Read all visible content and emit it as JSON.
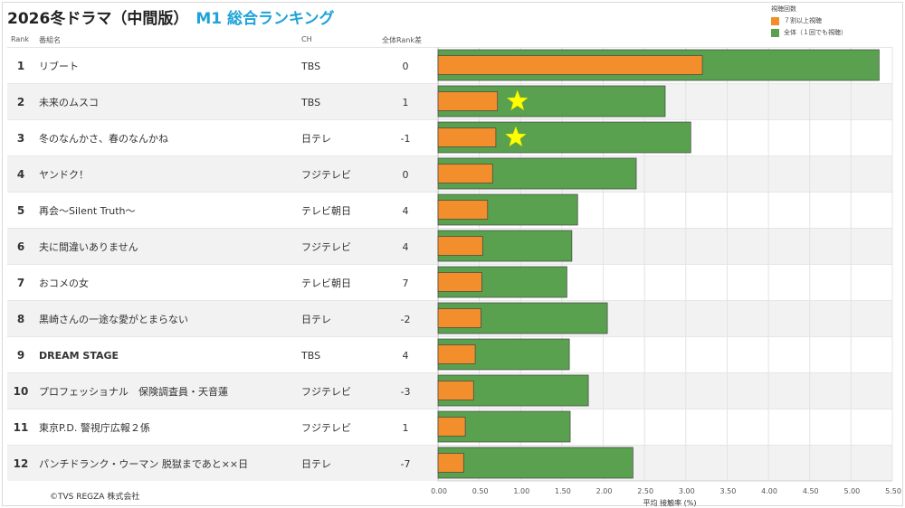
{
  "title": "2026冬ドラマ（中間版）",
  "subtitle": "M1 総合ランキング",
  "headers": {
    "rank": "Rank",
    "program": "番組名",
    "channel": "CH",
    "rank_diff": "全体Rank差"
  },
  "legend": {
    "title": "視聴回数",
    "items": [
      {
        "label": "７割以上視聴",
        "color": "#f28e2b"
      },
      {
        "label": "全体（１回でも視聴）",
        "color": "#59a14f"
      }
    ]
  },
  "rows": [
    {
      "rank": "1",
      "program": "リブート",
      "channel": "TBS",
      "rank_diff": "0",
      "bold": false
    },
    {
      "rank": "2",
      "program": "未来のムスコ",
      "channel": "TBS",
      "rank_diff": "1",
      "bold": false
    },
    {
      "rank": "3",
      "program": "冬のなんかさ、春のなんかね",
      "channel": "日テレ",
      "rank_diff": "-1",
      "bold": false
    },
    {
      "rank": "4",
      "program": "ヤンドク！",
      "channel": "フジテレビ",
      "rank_diff": "0",
      "bold": false
    },
    {
      "rank": "5",
      "program": "再会〜Silent Truth〜",
      "channel": "テレビ朝日",
      "rank_diff": "4",
      "bold": false
    },
    {
      "rank": "6",
      "program": "夫に間違いありません",
      "channel": "フジテレビ",
      "rank_diff": "4",
      "bold": false
    },
    {
      "rank": "7",
      "program": "おコメの女",
      "channel": "テレビ朝日",
      "rank_diff": "7",
      "bold": false
    },
    {
      "rank": "8",
      "program": "黒崎さんの一途な愛がとまらない",
      "channel": "日テレ",
      "rank_diff": "-2",
      "bold": false
    },
    {
      "rank": "9",
      "program": "DREAM STAGE",
      "channel": "TBS",
      "rank_diff": "4",
      "bold": true
    },
    {
      "rank": "10",
      "program": "プロフェッショナル　保険調査員・天音蓮",
      "channel": "フジテレビ",
      "rank_diff": "-3",
      "bold": false
    },
    {
      "rank": "11",
      "program": "東京P.D. 警視庁広報２係",
      "channel": "フジテレビ",
      "rank_diff": "1",
      "bold": false
    },
    {
      "rank": "12",
      "program": "パンチドランク・ウーマン 脱獄まであと××日",
      "channel": "日テレ",
      "rank_diff": "-7",
      "bold": false
    }
  ],
  "chart_data": {
    "type": "bar",
    "orientation": "horizontal",
    "categories": [
      "リブート",
      "未来のムスコ",
      "冬のなんかさ、春のなんかね",
      "ヤンドク！",
      "再会〜Silent Truth〜",
      "夫に間違いありません",
      "おコメの女",
      "黒崎さんの一途な愛がとまらない",
      "DREAM STAGE",
      "プロフェッショナル　保険調査員・天音蓮",
      "東京P.D. 警視庁広報２係",
      "パンチドランク・ウーマン 脱獄まであと××日"
    ],
    "series": [
      {
        "name": "全体（１回でも視聴）",
        "color": "#59a14f",
        "values": [
          5.34,
          2.75,
          3.06,
          2.4,
          1.69,
          1.62,
          1.56,
          2.05,
          1.59,
          1.82,
          1.6,
          2.36
        ]
      },
      {
        "name": "７割以上視聴",
        "color": "#f28e2b",
        "values": [
          3.2,
          0.72,
          0.7,
          0.66,
          0.6,
          0.54,
          0.53,
          0.52,
          0.45,
          0.43,
          0.33,
          0.31
        ]
      }
    ],
    "highlighted_rows": [
      2,
      3
    ],
    "highlight_marker": "star",
    "highlight_color": "#ffff00",
    "xlabel": "平均 接触率 (%)",
    "xlim": [
      0,
      5.5
    ],
    "xticks": [
      "0.00",
      "0.50",
      "1.00",
      "1.50",
      "2.00",
      "2.50",
      "3.00",
      "3.50",
      "4.00",
      "4.50",
      "5.00",
      "5.50"
    ],
    "grid": true
  },
  "footer": "©TVS REGZA 株式会社"
}
